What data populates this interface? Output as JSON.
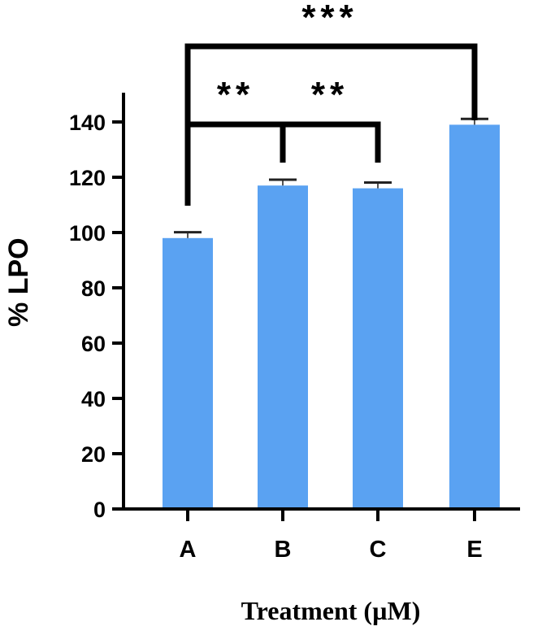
{
  "chart_data": {
    "type": "bar",
    "categories": [
      "A",
      "B",
      "C",
      "E"
    ],
    "values": [
      98,
      117,
      116,
      139
    ],
    "errors": [
      1.5,
      1.5,
      1.5,
      1.5
    ],
    "title": "",
    "xlabel": "Treatment (µM)",
    "ylabel": "% LPO",
    "ylim": [
      0,
      150
    ],
    "yticks": [
      0,
      20,
      40,
      60,
      80,
      100,
      120,
      140
    ],
    "bar_color": "#5aa2f2",
    "grid": false,
    "significance": [
      {
        "from": "A",
        "to": "E",
        "label": "***"
      },
      {
        "from": "A",
        "to": "B",
        "label": "**"
      },
      {
        "from": "B",
        "to": "C",
        "label": "**"
      }
    ]
  }
}
